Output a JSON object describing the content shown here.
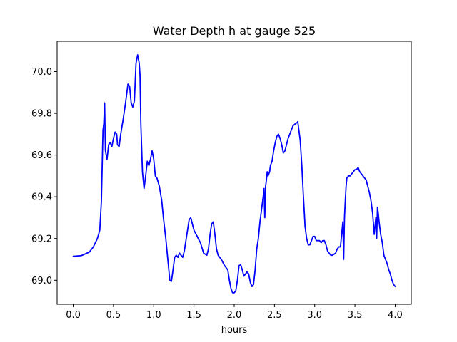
{
  "chart_data": {
    "type": "line",
    "title": "Water Depth h at gauge 525",
    "xlabel": "hours",
    "ylabel": "",
    "xlim": [
      -0.2,
      4.2
    ],
    "ylim": [
      68.885,
      70.145
    ],
    "xticks": [
      0.0,
      0.5,
      1.0,
      1.5,
      2.0,
      2.5,
      3.0,
      3.5,
      4.0
    ],
    "xtick_labels": [
      "0.0",
      "0.5",
      "1.0",
      "1.5",
      "2.0",
      "2.5",
      "3.0",
      "3.5",
      "4.0"
    ],
    "yticks": [
      69.0,
      69.2,
      69.4,
      69.6,
      69.8,
      70.0
    ],
    "ytick_labels": [
      "69.0",
      "69.2",
      "69.4",
      "69.6",
      "69.8",
      "70.0"
    ],
    "grid": false,
    "legend": "none",
    "series": [
      {
        "color": "#0000ff",
        "x": [
          0.0,
          0.1,
          0.2,
          0.25,
          0.3,
          0.33,
          0.35,
          0.36,
          0.37,
          0.38,
          0.39,
          0.4,
          0.41,
          0.42,
          0.44,
          0.46,
          0.48,
          0.5,
          0.52,
          0.54,
          0.55,
          0.57,
          0.59,
          0.62,
          0.65,
          0.68,
          0.7,
          0.72,
          0.74,
          0.76,
          0.78,
          0.8,
          0.82,
          0.83,
          0.84,
          0.86,
          0.88,
          0.9,
          0.92,
          0.94,
          0.96,
          0.98,
          1.0,
          1.02,
          1.04,
          1.07,
          1.1,
          1.12,
          1.15,
          1.18,
          1.2,
          1.22,
          1.24,
          1.26,
          1.28,
          1.3,
          1.32,
          1.34,
          1.36,
          1.38,
          1.4,
          1.42,
          1.44,
          1.46,
          1.48,
          1.5,
          1.54,
          1.58,
          1.62,
          1.66,
          1.68,
          1.7,
          1.72,
          1.74,
          1.76,
          1.78,
          1.8,
          1.84,
          1.88,
          1.9,
          1.92,
          1.94,
          1.96,
          1.98,
          2.0,
          2.02,
          2.04,
          2.06,
          2.08,
          2.1,
          2.12,
          2.14,
          2.16,
          2.18,
          2.2,
          2.22,
          2.24,
          2.26,
          2.28,
          2.3,
          2.32,
          2.34,
          2.36,
          2.37,
          2.38,
          2.39,
          2.4,
          2.41,
          2.42,
          2.44,
          2.45,
          2.47,
          2.49,
          2.51,
          2.53,
          2.55,
          2.57,
          2.59,
          2.61,
          2.63,
          2.65,
          2.67,
          2.7,
          2.73,
          2.76,
          2.78,
          2.79,
          2.8,
          2.82,
          2.84,
          2.86,
          2.88,
          2.9,
          2.92,
          2.94,
          2.96,
          2.98,
          3.0,
          3.02,
          3.04,
          3.06,
          3.08,
          3.1,
          3.12,
          3.14,
          3.16,
          3.18,
          3.2,
          3.22,
          3.24,
          3.26,
          3.28,
          3.3,
          3.32,
          3.34,
          3.35,
          3.36,
          3.37,
          3.38,
          3.39,
          3.4,
          3.42,
          3.44,
          3.46,
          3.48,
          3.5,
          3.52,
          3.54,
          3.56,
          3.58,
          3.6,
          3.62,
          3.64,
          3.66,
          3.68,
          3.7,
          3.72,
          3.74,
          3.76,
          3.77,
          3.78,
          3.79,
          3.8,
          3.82,
          3.84,
          3.86,
          3.88,
          3.9,
          3.92,
          3.94,
          3.96,
          3.98,
          4.0
        ],
        "y": [
          69.115,
          69.118,
          69.135,
          69.16,
          69.2,
          69.24,
          69.38,
          69.55,
          69.72,
          69.75,
          69.85,
          69.62,
          69.6,
          69.58,
          69.65,
          69.66,
          69.64,
          69.68,
          69.71,
          69.7,
          69.65,
          69.64,
          69.7,
          69.77,
          69.85,
          69.94,
          69.93,
          69.85,
          69.83,
          69.86,
          70.04,
          70.08,
          70.04,
          69.98,
          69.75,
          69.52,
          69.44,
          69.5,
          69.57,
          69.55,
          69.58,
          69.62,
          69.58,
          69.5,
          69.49,
          69.45,
          69.38,
          69.3,
          69.2,
          69.08,
          69.0,
          68.995,
          69.05,
          69.11,
          69.12,
          69.11,
          69.13,
          69.12,
          69.11,
          69.14,
          69.19,
          69.24,
          69.29,
          69.3,
          69.27,
          69.24,
          69.21,
          69.18,
          69.13,
          69.12,
          69.15,
          69.22,
          69.27,
          69.28,
          69.22,
          69.15,
          69.12,
          69.1,
          69.07,
          69.06,
          69.05,
          69.0,
          68.96,
          68.94,
          68.94,
          68.95,
          69.0,
          69.07,
          69.075,
          69.05,
          69.02,
          69.03,
          69.04,
          69.03,
          68.99,
          68.97,
          68.98,
          69.05,
          69.15,
          69.2,
          69.28,
          69.34,
          69.4,
          69.44,
          69.3,
          69.45,
          69.48,
          69.52,
          69.5,
          69.52,
          69.55,
          69.57,
          69.62,
          69.66,
          69.69,
          69.7,
          69.68,
          69.65,
          69.61,
          69.62,
          69.65,
          69.68,
          69.71,
          69.74,
          69.75,
          69.755,
          69.76,
          69.73,
          69.67,
          69.55,
          69.4,
          69.26,
          69.2,
          69.17,
          69.17,
          69.19,
          69.21,
          69.21,
          69.19,
          69.19,
          69.19,
          69.18,
          69.19,
          69.19,
          69.17,
          69.14,
          69.13,
          69.12,
          69.12,
          69.125,
          69.13,
          69.15,
          69.16,
          69.16,
          69.24,
          69.28,
          69.1,
          69.3,
          69.38,
          69.45,
          69.49,
          69.5,
          69.5,
          69.51,
          69.52,
          69.53,
          69.53,
          69.54,
          69.52,
          69.51,
          69.5,
          69.49,
          69.48,
          69.45,
          69.42,
          69.38,
          69.32,
          69.22,
          69.3,
          69.2,
          69.35,
          69.32,
          69.28,
          69.22,
          69.18,
          69.12,
          69.1,
          69.08,
          69.05,
          69.03,
          69.0,
          68.98,
          68.97
        ]
      }
    ]
  }
}
